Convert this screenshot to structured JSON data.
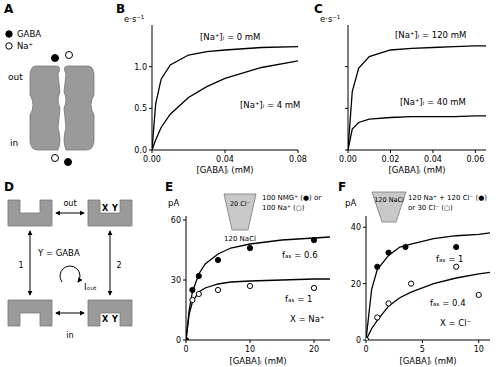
{
  "chart_data": [
    {
      "type": "line",
      "title": "B",
      "x_label": "[GABA]ᵢ (mM)",
      "y_label": "e·s⁻¹",
      "xlim": [
        0,
        0.08
      ],
      "ylim": [
        0,
        1.5
      ],
      "xticks": [
        {
          "value": 0,
          "label": "0.00"
        },
        0.04,
        0.08
      ],
      "yticks": [
        {
          "value": 0,
          "label": "0.0"
        },
        0.5,
        {
          "value": 1,
          "label": "1.0"
        }
      ],
      "grid": false,
      "series": [
        {
          "name": "[Na⁺]ᵢ = 0 mM",
          "type": "line",
          "line_style": "solid",
          "color": "#000000",
          "x": [
            0,
            0.002,
            0.005,
            0.01,
            0.02,
            0.03,
            0.04,
            0.06,
            0.08
          ],
          "values": [
            0,
            0.55,
            0.85,
            1.02,
            1.14,
            1.18,
            1.2,
            1.23,
            1.24
          ]
        },
        {
          "name": "[Na⁺]ᵢ = 4 mM",
          "type": "line",
          "line_style": "solid",
          "color": "#000000",
          "x": [
            0,
            0.002,
            0.005,
            0.01,
            0.02,
            0.03,
            0.04,
            0.06,
            0.08
          ],
          "values": [
            0,
            0.12,
            0.27,
            0.43,
            0.63,
            0.76,
            0.86,
            0.99,
            1.07
          ]
        }
      ],
      "annotations": []
    },
    {
      "type": "line",
      "title": "C",
      "x_label": "[GABA]ᵢ (mM)",
      "y_label": "e·s⁻¹",
      "xlim": [
        0,
        0.065
      ],
      "ylim": [
        0,
        1.5
      ],
      "xticks": [
        {
          "value": 0,
          "label": "0.00"
        },
        0.02,
        0.04,
        0.06
      ],
      "yticks": [
        0,
        0.5,
        1
      ],
      "tick_labels": "x",
      "grid": false,
      "series": [
        {
          "name": "[Na⁺]ᵢ = 120 mM",
          "type": "line",
          "line_style": "solid",
          "color": "#000000",
          "x": [
            0,
            0.002,
            0.005,
            0.01,
            0.02,
            0.03,
            0.04,
            0.05,
            0.06,
            0.065
          ],
          "values": [
            0,
            0.7,
            0.98,
            1.12,
            1.2,
            1.22,
            1.23,
            1.24,
            1.25,
            1.25
          ]
        },
        {
          "name": "[Na⁺]ᵢ = 40 mM",
          "type": "line",
          "line_style": "solid",
          "color": "#000000",
          "x": [
            0,
            0.002,
            0.005,
            0.01,
            0.02,
            0.03,
            0.04,
            0.05,
            0.06,
            0.065
          ],
          "values": [
            0,
            0.25,
            0.33,
            0.37,
            0.39,
            0.4,
            0.4,
            0.4,
            0.41,
            0.41
          ]
        }
      ],
      "annotations": []
    },
    {
      "type": "line",
      "title": "E",
      "x_label": "[GABA]ᵢ (mM)",
      "y_label": "pA",
      "xlim": [
        0,
        22.5
      ],
      "ylim": [
        0,
        62
      ],
      "xticks": [
        0,
        10,
        20
      ],
      "yticks": [
        0,
        30,
        60
      ],
      "grid": false,
      "series": [
        {
          "name": "fₐₛ = 0.6",
          "type": "line",
          "line_style": "solid",
          "color": "#000000",
          "x": [
            0,
            0.5,
            1,
            2,
            3,
            5,
            7,
            10,
            15,
            20,
            22.5
          ],
          "values": [
            0,
            15,
            24,
            33,
            38,
            43,
            46,
            48,
            50,
            51,
            51.5
          ]
        },
        {
          "name": "fₐₛ = 1",
          "type": "line",
          "line_style": "solid",
          "color": "#000000",
          "x": [
            0,
            0.5,
            1,
            2,
            3,
            5,
            7,
            10,
            15,
            20,
            22.5
          ],
          "values": [
            0,
            13,
            19,
            24,
            26,
            28,
            29,
            29.5,
            30,
            30.5,
            30.5
          ]
        },
        {
          "type": "scatter",
          "marker": "filled",
          "color": "#000000",
          "x": [
            0,
            1,
            2,
            5,
            10,
            20
          ],
          "values": [
            0,
            25,
            32,
            40,
            46,
            50
          ]
        },
        {
          "type": "scatter",
          "marker": "open",
          "color": "#000000",
          "x": [
            1,
            2,
            5,
            10,
            20
          ],
          "values": [
            20,
            23,
            25,
            27,
            26
          ]
        }
      ],
      "annotations": [
        "20 Cl⁻",
        "120 NaCl",
        "100 NMG⁺ (●) or",
        "100 Na⁺ (○)",
        "X = Na⁺"
      ]
    },
    {
      "type": "line",
      "title": "F",
      "x_label": "[GABA]ᵢ (mM)",
      "y_label": "pA",
      "xlim": [
        0,
        11
      ],
      "ylim": [
        0,
        44
      ],
      "xticks": [
        0,
        5,
        10
      ],
      "yticks": [
        0,
        20,
        40
      ],
      "grid": false,
      "series": [
        {
          "name": "fₐₛ = 1",
          "type": "line",
          "line_style": "solid",
          "color": "#000000",
          "x": [
            0,
            0.5,
            1,
            2,
            3,
            4,
            6,
            8,
            10,
            11
          ],
          "values": [
            0,
            18,
            25,
            30,
            33,
            34,
            36,
            37,
            37.5,
            38
          ]
        },
        {
          "name": "fₐₛ = 0.4",
          "type": "line",
          "line_style": "solid",
          "color": "#000000",
          "x": [
            0,
            0.5,
            1,
            2,
            3,
            4,
            6,
            8,
            10,
            11
          ],
          "values": [
            0,
            4,
            7,
            12,
            15,
            17,
            20,
            22,
            23.5,
            24
          ]
        },
        {
          "type": "scatter",
          "marker": "filled",
          "color": "#000000",
          "x": [
            0,
            1,
            2,
            3.5,
            8
          ],
          "values": [
            0,
            26,
            31,
            33,
            33
          ]
        },
        {
          "type": "scatter",
          "marker": "open",
          "color": "#000000",
          "x": [
            0,
            1,
            2,
            4,
            8,
            10
          ],
          "values": [
            0,
            8,
            13,
            20,
            26,
            16
          ]
        }
      ],
      "annotations": [
        "120 NaCl",
        "120 Na⁺ + 120 Cl⁻ (●)",
        "or 30 Cl⁻ (○)",
        "X = Cl⁻"
      ]
    }
  ],
  "diagrams": {
    "A": {
      "title": "A",
      "legend": [
        {
          "label": "GABA",
          "marker": "filled"
        },
        {
          "label": "Na⁺",
          "marker": "open"
        }
      ],
      "labels": {
        "out": "out",
        "in": "in"
      }
    },
    "D": {
      "title": "D",
      "labels": {
        "out": "out",
        "in": "in",
        "x": "X",
        "y": "Y",
        "definition": "Y = GABA",
        "current": "Iₒᵤₜ",
        "step1": "1",
        "step2": "2"
      }
    }
  }
}
